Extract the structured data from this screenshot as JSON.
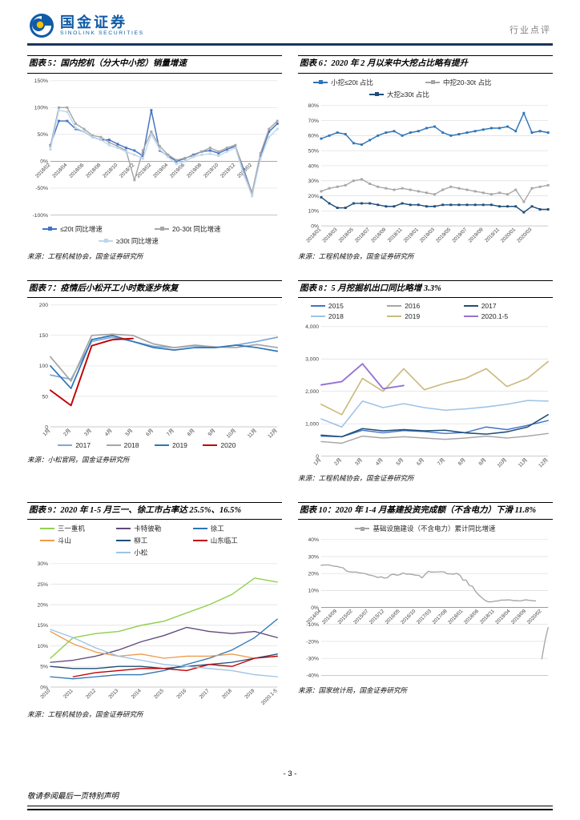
{
  "header": {
    "brand_cn": "国金证券",
    "brand_en": "SINOLINK SECURITIES",
    "doc_type": "行业点评",
    "accent_color": "#0f5ba7",
    "rule_color": "#17365d"
  },
  "footer": {
    "page_number": "- 3 -",
    "note": "敬请参阅最后一页特别声明"
  },
  "chart_data": [
    {
      "type": "line",
      "title": "图表 5：国内挖机（分大中小挖）销量增速",
      "source": "来源：工程机械协会，国金证券研究所",
      "ylim": [
        -100,
        150
      ],
      "yticks": [
        -100,
        -50,
        0,
        50,
        100,
        150
      ],
      "ytick_labels": [
        "-100%",
        "-50%",
        "0%",
        "50%",
        "100%",
        "150%"
      ],
      "x_tick_every": 2,
      "x_tick_stop": 24,
      "x_labels_at_zero": true,
      "legend_position": "bottom",
      "legend_cols": 2,
      "h": 190,
      "mb": 10,
      "categories": [
        "2018/02",
        "2018/03",
        "2018/04",
        "2018/05",
        "2018/06",
        "2018/07",
        "2018/08",
        "2018/09",
        "2018/10",
        "2018/11",
        "2018/12",
        "2019/01",
        "2019/02",
        "2019/03",
        "2019/04",
        "2019/05",
        "2019/06",
        "2019/07",
        "2019/08",
        "2019/09",
        "2019/10",
        "2019/11",
        "2019/12",
        "2020/01",
        "2020/02",
        "2020/03",
        "2020/04",
        "2020/05"
      ],
      "series": [
        {
          "name": "≤20t 同比增速",
          "color": "#4472c4",
          "marker": true,
          "width": 1.5,
          "values": [
            30,
            75,
            75,
            60,
            55,
            45,
            40,
            40,
            32,
            25,
            20,
            10,
            95,
            20,
            10,
            0,
            5,
            12,
            18,
            20,
            15,
            22,
            28,
            -15,
            -60,
            10,
            55,
            70
          ]
        },
        {
          "name": "20-30t 同比增速",
          "color": "#a6a6a6",
          "marker": true,
          "width": 1.5,
          "values": [
            28,
            100,
            100,
            70,
            60,
            48,
            45,
            35,
            28,
            20,
            -35,
            20,
            55,
            28,
            12,
            2,
            6,
            10,
            18,
            25,
            18,
            25,
            30,
            -20,
            -58,
            15,
            60,
            75
          ]
        },
        {
          "name": "≥30t 同比增速",
          "color": "#bdd7ee",
          "marker": true,
          "width": 1.4,
          "values": [
            22,
            95,
            92,
            62,
            55,
            45,
            40,
            30,
            25,
            18,
            12,
            5,
            50,
            22,
            8,
            -5,
            0,
            8,
            12,
            14,
            10,
            18,
            25,
            -25,
            -65,
            5,
            45,
            60
          ]
        }
      ]
    },
    {
      "type": "line",
      "title": "图表 6：2020 年 2 月以来中大挖占比略有提升",
      "source": "来源：工程机械协会，国金证券研究所",
      "ylim": [
        0,
        80
      ],
      "yticks": [
        0,
        10,
        20,
        30,
        40,
        50,
        60,
        70,
        80
      ],
      "ytick_labels": [
        "0%",
        "10%",
        "20%",
        "30%",
        "40%",
        "50%",
        "60%",
        "70%",
        "80%"
      ],
      "x_tick_every": 2,
      "x_tick_stop": 26,
      "legend_position": "top",
      "legend_cols": 2,
      "h": 190,
      "mb": 28,
      "categories": [
        "2018/01",
        "2018/02",
        "2018/03",
        "2018/04",
        "2018/05",
        "2018/06",
        "2018/07",
        "2018/08",
        "2018/09",
        "2018/10",
        "2018/11",
        "2018/12",
        "2019/01",
        "2019/02",
        "2019/03",
        "2019/04",
        "2019/05",
        "2019/06",
        "2019/07",
        "2019/08",
        "2019/09",
        "2019/10",
        "2019/11",
        "2019/12",
        "2020/01",
        "2020/02",
        "2020/03",
        "2020/04",
        "2020/05"
      ],
      "series": [
        {
          "name": "小挖≤20t 占比",
          "color": "#2e75b6",
          "marker": true,
          "width": 1.5,
          "values": [
            58,
            60,
            62,
            61,
            55,
            54,
            57,
            60,
            62,
            63,
            60,
            62,
            63,
            65,
            66,
            62,
            60,
            61,
            62,
            63,
            64,
            65,
            65,
            66,
            63,
            75,
            62,
            63,
            62
          ]
        },
        {
          "name": "中挖20-30t 占比",
          "color": "#a6a6a6",
          "marker": true,
          "width": 1.4,
          "values": [
            23,
            25,
            26,
            27,
            30,
            31,
            28,
            26,
            25,
            24,
            25,
            24,
            23,
            22,
            21,
            24,
            26,
            25,
            24,
            23,
            22,
            21,
            22,
            21,
            24,
            16,
            25,
            26,
            27
          ]
        },
        {
          "name": "大挖≥30t 占比",
          "color": "#1f4e79",
          "marker": true,
          "width": 1.5,
          "values": [
            19,
            15,
            12,
            12,
            15,
            15,
            15,
            14,
            13,
            13,
            15,
            14,
            14,
            13,
            13,
            14,
            14,
            14,
            14,
            14,
            14,
            14,
            13,
            13,
            13,
            9,
            13,
            11,
            11
          ]
        }
      ]
    },
    {
      "type": "line",
      "title": "图表 7：疫情后小松开工小时数逐步恢复",
      "source": "来源：小松官网，国金证券研究所",
      "ylim": [
        0,
        200
      ],
      "yticks": [
        0,
        50,
        100,
        150,
        200
      ],
      "ytick_labels": [
        "0",
        "50",
        "100",
        "150",
        "200"
      ],
      "x_tick_every": 1,
      "legend_position": "bottom",
      "legend_cols": 4,
      "h": 180,
      "mb": 16,
      "categories": [
        "1月",
        "2月",
        "3月",
        "4月",
        "5月",
        "6月",
        "7月",
        "8月",
        "9月",
        "10月",
        "11月",
        "12月"
      ],
      "series": [
        {
          "name": "2017",
          "color": "#7fa8d9",
          "width": 1.8,
          "values": [
            85,
            78,
            140,
            147,
            140,
            132,
            130,
            133,
            130,
            134,
            140,
            147
          ]
        },
        {
          "name": "2018",
          "color": "#a6a6a6",
          "width": 1.8,
          "values": [
            115,
            75,
            150,
            152,
            150,
            136,
            130,
            134,
            131,
            130,
            135,
            130
          ]
        },
        {
          "name": "2019",
          "color": "#2e75b6",
          "width": 1.8,
          "values": [
            100,
            63,
            143,
            150,
            140,
            130,
            126,
            130,
            130,
            134,
            130,
            124
          ]
        },
        {
          "name": "2020",
          "color": "#c00000",
          "width": 2,
          "values": [
            60,
            35,
            133,
            143,
            145,
            null,
            null,
            null,
            null,
            null,
            null,
            null
          ]
        }
      ]
    },
    {
      "type": "line",
      "title": "图表 8：5 月挖掘机出口同比略增 3.3%",
      "source": "来源：工程机械协会，国金证券研究所",
      "ylim": [
        0,
        4000
      ],
      "yticks": [
        0,
        1000,
        2000,
        3000,
        4000
      ],
      "ytick_labels": [
        "0",
        "1,000",
        "2,000",
        "3,000",
        "4,000"
      ],
      "x_tick_every": 1,
      "legend_position": "top",
      "legend_cols": 3,
      "h": 190,
      "mb": 16,
      "categories": [
        "1月",
        "2月",
        "3月",
        "4月",
        "5月",
        "6月",
        "7月",
        "8月",
        "9月",
        "10月",
        "11月",
        "12月"
      ],
      "series": [
        {
          "name": "2015",
          "color": "#4472c4",
          "width": 1.5,
          "values": [
            620,
            600,
            800,
            720,
            790,
            760,
            700,
            730,
            900,
            820,
            950,
            1100
          ]
        },
        {
          "name": "2016",
          "color": "#a6a6a6",
          "width": 1.5,
          "values": [
            450,
            400,
            620,
            560,
            600,
            560,
            520,
            560,
            620,
            560,
            620,
            700
          ]
        },
        {
          "name": "2017",
          "color": "#1f4e79",
          "width": 1.6,
          "values": [
            650,
            600,
            850,
            780,
            820,
            780,
            800,
            720,
            680,
            750,
            900,
            1280
          ]
        },
        {
          "name": "2018",
          "color": "#9dc3e6",
          "width": 1.6,
          "values": [
            1150,
            900,
            1700,
            1500,
            1620,
            1500,
            1420,
            1460,
            1520,
            1600,
            1720,
            1700
          ]
        },
        {
          "name": "2019",
          "color": "#cdb97d",
          "width": 1.7,
          "values": [
            1600,
            1280,
            2400,
            2000,
            2700,
            2050,
            2250,
            2400,
            2700,
            2150,
            2400,
            2920
          ]
        },
        {
          "name": "2020.1-5",
          "color": "#9673d3",
          "width": 2,
          "values": [
            2200,
            2300,
            2850,
            2080,
            2180,
            null,
            null,
            null,
            null,
            null,
            null,
            null
          ]
        }
      ]
    },
    {
      "type": "line",
      "title": "图表 9：2020 年 1-5 月三一、徐工市占率达 25.5%、16.5%",
      "source": "来源：工程机械协会，国金证券研究所",
      "ylim": [
        0,
        30
      ],
      "yticks": [
        0,
        5,
        10,
        15,
        20,
        25,
        30
      ],
      "ytick_labels": [
        "0%",
        "5%",
        "10%",
        "15%",
        "20%",
        "25%",
        "30%"
      ],
      "x_tick_every": 1,
      "legend_position": "top",
      "legend_cols": 3,
      "h": 190,
      "mb": 24,
      "categories": [
        "2010",
        "2011",
        "2012",
        "2013",
        "2014",
        "2015",
        "2016",
        "2017",
        "2018",
        "2019",
        "2020.1-5"
      ],
      "series": [
        {
          "name": "三一重机",
          "color": "#92d050",
          "width": 1.5,
          "values": [
            7,
            12,
            13,
            13.5,
            15,
            16,
            18,
            20,
            22.5,
            26.5,
            25.5
          ]
        },
        {
          "name": "卡特彼勒",
          "color": "#604a7b",
          "width": 1.4,
          "values": [
            6,
            6.5,
            7.5,
            9,
            11,
            12.5,
            14.5,
            13.5,
            13,
            13.5,
            12
          ]
        },
        {
          "name": "徐工",
          "color": "#2e75b6",
          "width": 1.4,
          "values": [
            2.5,
            2,
            2.5,
            3,
            3,
            4,
            5.5,
            7,
            9,
            12,
            16.5
          ]
        },
        {
          "name": "斗山",
          "color": "#ed9b4f",
          "width": 1.4,
          "values": [
            13.5,
            10.5,
            8.5,
            7.5,
            8,
            7,
            7.5,
            7.5,
            8,
            7,
            7.5
          ]
        },
        {
          "name": "柳工",
          "color": "#1f4e79",
          "width": 1.4,
          "values": [
            5,
            4.5,
            4.5,
            5,
            5,
            4.5,
            5,
            5.5,
            6,
            7,
            8
          ]
        },
        {
          "name": "山东临工",
          "color": "#c00000",
          "width": 1.4,
          "values": [
            null,
            2.5,
            3.5,
            4,
            4.5,
            4.5,
            4,
            5.5,
            5,
            7,
            7.5
          ]
        },
        {
          "name": "小松",
          "color": "#9dc3e6",
          "width": 1.4,
          "values": [
            14,
            12,
            9.5,
            7.5,
            6.5,
            5.5,
            5,
            4.5,
            4,
            3,
            2.5
          ]
        }
      ]
    },
    {
      "type": "line",
      "title": "图表 10：2020 年 1-4 月基建投资完成额（不含电力）下滑 11.8%",
      "source": "来源：国家统计局，国金证券研究所",
      "ylim": [
        -40,
        40
      ],
      "yticks": [
        -40,
        -30,
        -20,
        -10,
        0,
        10,
        20,
        30,
        40
      ],
      "ytick_labels": [
        "-40%",
        "-30%",
        "-20%",
        "-10%",
        "0%",
        "10%",
        "20%",
        "30%",
        "40%"
      ],
      "x_tick_every": 5,
      "x_labels_at_zero": true,
      "legend_position": "top",
      "legend_cols": 1,
      "h": 190,
      "mb": 8,
      "categories": [
        "2014/04",
        "2014/05",
        "2014/06",
        "2014/07",
        "2014/08",
        "2014/09",
        "2014/10",
        "2014/11",
        "2014/12",
        "2015/01",
        "2015/02",
        "2015/03",
        "2015/04",
        "2015/05",
        "2015/06",
        "2015/07",
        "2015/08",
        "2015/09",
        "2015/10",
        "2015/11",
        "2015/12",
        "2016/01",
        "2016/02",
        "2016/03",
        "2016/04",
        "2016/05",
        "2016/06",
        "2016/07",
        "2016/08",
        "2016/09",
        "2016/10",
        "2016/11",
        "2016/12",
        "2017/01",
        "2017/02",
        "2017/03",
        "2017/04",
        "2017/05",
        "2017/06",
        "2017/07",
        "2017/08",
        "2017/09",
        "2017/10",
        "2017/11",
        "2017/12",
        "2018/01",
        "2018/02",
        "2018/03",
        "2018/04",
        "2018/05",
        "2018/06",
        "2018/07",
        "2018/08",
        "2018/09",
        "2018/10",
        "2018/11",
        "2018/12",
        "2019/01",
        "2019/02",
        "2019/03",
        "2019/04",
        "2019/05",
        "2019/06",
        "2019/07",
        "2019/08",
        "2019/09",
        "2019/10",
        "2019/11",
        "2019/12",
        "2020/01",
        "2020/02",
        "2020/03",
        "2020/04"
      ],
      "series": [
        {
          "name": "基础设施建设（不含电力）累计同比增速",
          "color": "#a6a6a6",
          "width": 1.4,
          "lmarker": true,
          "values": [
            24.8,
            25.0,
            25.1,
            24.8,
            24.3,
            24.2,
            23.7,
            23.3,
            21.5,
            21.0,
            20.8,
            20.9,
            20.4,
            20.2,
            19.9,
            19.2,
            18.9,
            18.3,
            17.6,
            18.1,
            17.3,
            17.5,
            19.2,
            19.6,
            19.0,
            19.3,
            20.3,
            19.6,
            19.7,
            19.4,
            19.0,
            18.9,
            17.4,
            19.5,
            21.3,
            20.8,
            20.9,
            20.9,
            21.1,
            20.9,
            19.8,
            19.8,
            19.6,
            20.1,
            19.0,
            16.1,
            16.1,
            13.0,
            12.4,
            9.4,
            7.3,
            5.7,
            4.2,
            3.3,
            3.3,
            3.7,
            3.8,
            4.3,
            4.3,
            4.4,
            4.4,
            4.0,
            4.1,
            3.8,
            4.2,
            4.5,
            4.2,
            4.0,
            3.8,
            null,
            -30.3,
            -19.7,
            -11.8
          ]
        }
      ]
    }
  ]
}
